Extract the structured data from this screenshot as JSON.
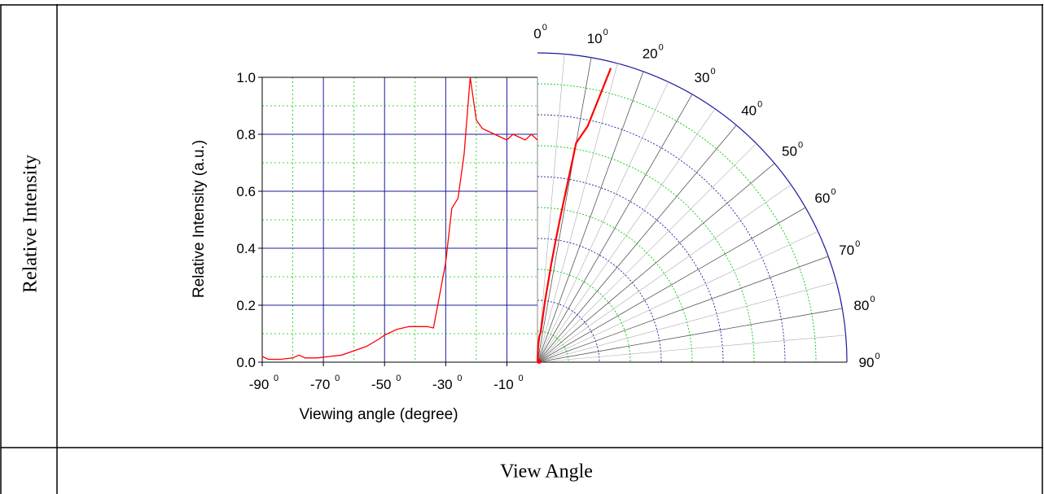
{
  "table": {
    "row_label": "Relative Intensity",
    "column_label": "View Angle"
  },
  "chart_data": {
    "type": "line",
    "title": "",
    "xlabel": "Viewing angle (degree)",
    "ylabel": "Relative Intensity (a.u.)",
    "xlim": [
      -90,
      0
    ],
    "ylim": [
      0.0,
      1.0
    ],
    "grid": true,
    "x_ticks": [
      {
        "value": -90,
        "label": "-90",
        "sup": "0"
      },
      {
        "value": -70,
        "label": "-70",
        "sup": "0"
      },
      {
        "value": -50,
        "label": "-50",
        "sup": "0"
      },
      {
        "value": -30,
        "label": "-30",
        "sup": "0"
      },
      {
        "value": -10,
        "label": "-10",
        "sup": "0"
      }
    ],
    "y_ticks": [
      {
        "value": 0.0,
        "label": "0.0"
      },
      {
        "value": 0.2,
        "label": "0.2"
      },
      {
        "value": 0.4,
        "label": "0.4"
      },
      {
        "value": 0.6,
        "label": "0.6"
      },
      {
        "value": 0.8,
        "label": "0.8"
      },
      {
        "value": 1.0,
        "label": "1.0"
      }
    ],
    "series": [
      {
        "color": "#ff0000",
        "x": [
          -90,
          -88,
          -84,
          -80,
          -78,
          -76,
          -74,
          -72,
          -68,
          -64,
          -60,
          -56,
          -52,
          -50,
          -46,
          -42,
          -40,
          -36,
          -34,
          -30,
          -28,
          -26,
          -24,
          -22,
          -20,
          -18,
          -16,
          -14,
          -12,
          -10,
          -8,
          -6,
          -4,
          -2,
          0
        ],
        "y": [
          0.02,
          0.01,
          0.01,
          0.015,
          0.025,
          0.015,
          0.015,
          0.015,
          0.02,
          0.025,
          0.04,
          0.055,
          0.08,
          0.095,
          0.115,
          0.125,
          0.125,
          0.125,
          0.12,
          0.35,
          0.54,
          0.575,
          0.73,
          1.0,
          0.85,
          0.82,
          0.81,
          0.8,
          0.79,
          0.78,
          0.8,
          0.79,
          0.78,
          0.8,
          0.78
        ]
      }
    ],
    "polar": {
      "angle_ticks": [
        {
          "value": 0,
          "label": "0",
          "sup": "0"
        },
        {
          "value": 10,
          "label": "10",
          "sup": "0"
        },
        {
          "value": 20,
          "label": "20",
          "sup": "0"
        },
        {
          "value": 30,
          "label": "30",
          "sup": "0"
        },
        {
          "value": 40,
          "label": "40",
          "sup": "0"
        },
        {
          "value": 50,
          "label": "50",
          "sup": "0"
        },
        {
          "value": 60,
          "label": "60",
          "sup": "0"
        },
        {
          "value": 70,
          "label": "70",
          "sup": "0"
        },
        {
          "value": 80,
          "label": "80",
          "sup": "0"
        },
        {
          "value": 90,
          "label": "90",
          "sup": "0"
        }
      ],
      "angle_range": [
        0,
        90
      ],
      "radius_range": [
        0,
        1.0
      ],
      "series": {
        "color": "#ff0000",
        "angle": [
          0,
          2,
          4,
          5,
          6,
          7,
          8,
          8.5,
          9,
          10,
          12,
          14
        ],
        "r": [
          0.0,
          0.05,
          0.08,
          0.09,
          0.095,
          0.2,
          0.32,
          0.4,
          0.48,
          0.72,
          0.78,
          0.98
        ]
      }
    }
  }
}
